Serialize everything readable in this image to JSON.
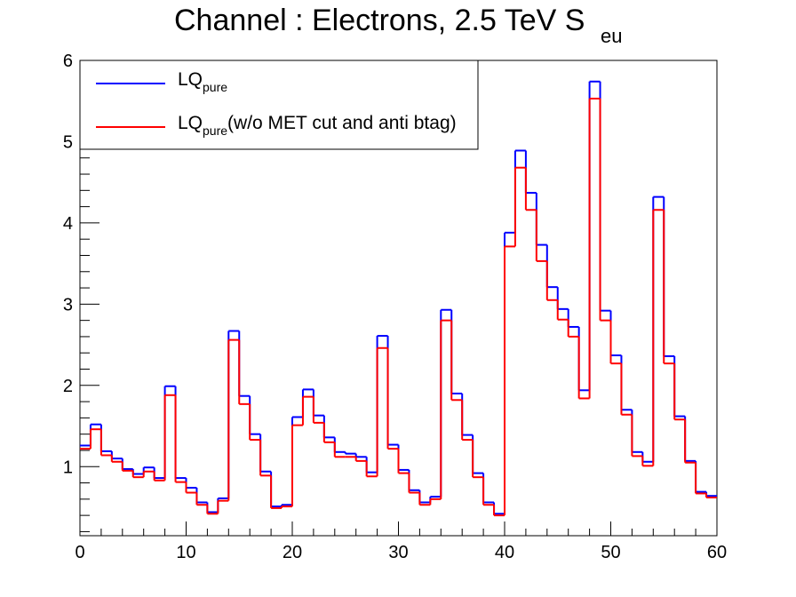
{
  "chart_data": {
    "type": "line",
    "step": true,
    "title": "Channel : Electrons, 2.5 TeV S",
    "title_subscript": "eu",
    "xlabel": "",
    "ylabel": "",
    "xlim": [
      0,
      60
    ],
    "ylim": [
      0.15,
      6
    ],
    "x_ticks": [
      0,
      10,
      20,
      30,
      40,
      50,
      60
    ],
    "x_tick_labels": [
      "0",
      "10",
      "20",
      "30",
      "40",
      "50",
      "60"
    ],
    "y_ticks": [
      1,
      2,
      3,
      4,
      5,
      6
    ],
    "y_tick_labels": [
      "1",
      "2",
      "3",
      "4",
      "5",
      "6"
    ],
    "grid": false,
    "legend_position": "top-left",
    "bin_edges": [
      0,
      1,
      2,
      3,
      4,
      5,
      6,
      7,
      8,
      9,
      10,
      11,
      12,
      13,
      14,
      15,
      16,
      17,
      18,
      19,
      20,
      21,
      22,
      23,
      24,
      25,
      26,
      27,
      28,
      29,
      30,
      31,
      32,
      33,
      34,
      35,
      36,
      37,
      38,
      39,
      40,
      41,
      42,
      43,
      44,
      45,
      46,
      47,
      48,
      49,
      50,
      51,
      52,
      53,
      54,
      55,
      56,
      57,
      58,
      59,
      60
    ],
    "series": [
      {
        "name": "LQ",
        "name_subscript": "pure",
        "name_suffix": "",
        "color": "#0000ff",
        "values": [
          1.26,
          1.52,
          1.19,
          1.1,
          0.97,
          0.91,
          0.99,
          0.86,
          1.99,
          0.86,
          0.74,
          0.56,
          0.44,
          0.61,
          2.67,
          1.87,
          1.4,
          0.94,
          0.51,
          0.53,
          1.61,
          1.95,
          1.63,
          1.36,
          1.18,
          1.16,
          1.12,
          0.93,
          2.61,
          1.27,
          0.96,
          0.71,
          0.56,
          0.63,
          2.93,
          1.9,
          1.39,
          0.92,
          0.56,
          0.42,
          3.88,
          4.89,
          4.37,
          3.73,
          3.21,
          2.94,
          2.72,
          1.94,
          5.74,
          2.92,
          2.37,
          1.7,
          1.18,
          1.06,
          4.32,
          2.36,
          1.62,
          1.07,
          0.69,
          0.64
        ]
      },
      {
        "name": "LQ",
        "name_subscript": "pure",
        "name_suffix": "(w/o MET cut and anti btag)",
        "color": "#ff0000",
        "values": [
          1.22,
          1.46,
          1.14,
          1.06,
          0.95,
          0.87,
          0.94,
          0.83,
          1.88,
          0.81,
          0.68,
          0.53,
          0.42,
          0.58,
          2.56,
          1.77,
          1.33,
          0.89,
          0.49,
          0.51,
          1.51,
          1.86,
          1.54,
          1.3,
          1.12,
          1.12,
          1.07,
          0.88,
          2.46,
          1.22,
          0.92,
          0.68,
          0.53,
          0.6,
          2.8,
          1.82,
          1.33,
          0.87,
          0.53,
          0.4,
          3.71,
          4.68,
          4.16,
          3.53,
          3.05,
          2.81,
          2.6,
          1.84,
          5.53,
          2.8,
          2.27,
          1.64,
          1.13,
          1.01,
          4.16,
          2.27,
          1.58,
          1.05,
          0.67,
          0.62
        ]
      }
    ]
  }
}
